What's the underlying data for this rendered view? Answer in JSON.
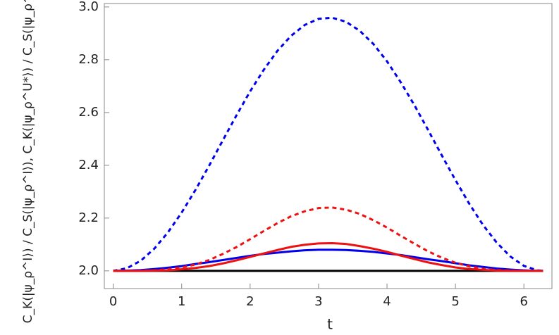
{
  "chart_data": {
    "type": "line",
    "x_label": "t",
    "y_label": "C_K(|ψ_ρ^I⟩) / C_S(|ψ_ρ^I⟩),  C_K(|ψ_ρ^U*⟩) / C_S(|ψ_ρ^U*⟩)",
    "x": [
      0,
      0.2,
      0.4,
      0.6,
      0.8,
      1.0,
      1.2,
      1.4,
      1.6,
      1.8,
      2.0,
      2.2,
      2.4,
      2.6,
      2.8,
      3.0,
      3.2,
      3.4,
      3.6,
      3.8,
      4.0,
      4.2,
      4.4,
      4.6,
      4.8,
      5.0,
      5.2,
      5.4,
      5.6,
      5.8,
      6.0,
      6.2,
      6.28
    ],
    "series": [
      {
        "color": "#000000",
        "dashed": false,
        "values": [
          2,
          2,
          2,
          2,
          2,
          2,
          2,
          2,
          2,
          2,
          2,
          2,
          2,
          2,
          2,
          2,
          2,
          2,
          2,
          2,
          2,
          2,
          2,
          2,
          2,
          2,
          2,
          2,
          2,
          2,
          2,
          2,
          2
        ]
      },
      {
        "color": "#0000ee",
        "dashed": true,
        "values": [
          2.0,
          2.01,
          2.038,
          2.084,
          2.146,
          2.221,
          2.306,
          2.398,
          2.494,
          2.589,
          2.68,
          2.762,
          2.834,
          2.891,
          2.932,
          2.955,
          2.959,
          2.944,
          2.91,
          2.86,
          2.794,
          2.715,
          2.628,
          2.534,
          2.438,
          2.344,
          2.255,
          2.175,
          2.108,
          2.055,
          2.019,
          2.002,
          2.0
        ]
      },
      {
        "color": "#0000ee",
        "dashed": false,
        "values": [
          2.0,
          2.001,
          2.003,
          2.007,
          2.012,
          2.018,
          2.026,
          2.033,
          2.041,
          2.049,
          2.057,
          2.064,
          2.069,
          2.074,
          2.078,
          2.08,
          2.08,
          2.079,
          2.076,
          2.072,
          2.066,
          2.06,
          2.052,
          2.044,
          2.037,
          2.029,
          2.021,
          2.015,
          2.009,
          2.005,
          2.002,
          2.0,
          2.0
        ]
      },
      {
        "color": "#ee1111",
        "dashed": true,
        "values": [
          2.0,
          2.0,
          2.0,
          2.002,
          2.006,
          2.013,
          2.024,
          2.041,
          2.064,
          2.09,
          2.12,
          2.151,
          2.181,
          2.207,
          2.226,
          2.238,
          2.24,
          2.232,
          2.216,
          2.192,
          2.164,
          2.133,
          2.103,
          2.074,
          2.05,
          2.031,
          2.017,
          2.008,
          2.003,
          2.001,
          2.0,
          2.0,
          2.0
        ]
      },
      {
        "color": "#ee1111",
        "dashed": false,
        "values": [
          2.0,
          2.0,
          2.0,
          2.001,
          2.002,
          2.006,
          2.011,
          2.018,
          2.028,
          2.04,
          2.053,
          2.066,
          2.079,
          2.091,
          2.099,
          2.104,
          2.105,
          2.102,
          2.094,
          2.084,
          2.072,
          2.058,
          2.045,
          2.032,
          2.022,
          2.013,
          2.007,
          2.004,
          2.001,
          2.0,
          2.0,
          2.0,
          2.0
        ]
      }
    ],
    "xlim": [
      -0.13,
      6.41
    ],
    "ylim": [
      1.933,
      3.013
    ],
    "xticks": [
      0,
      1,
      2,
      3,
      4,
      5,
      6
    ],
    "yticks": [
      {
        "value": 2,
        "label": "2.0"
      },
      {
        "value": 2.2,
        "label": "2.2"
      },
      {
        "value": 2.4,
        "label": "2.4"
      },
      {
        "value": 2.6,
        "label": "2.6"
      },
      {
        "value": 2.8,
        "label": "2.8"
      },
      {
        "value": 3,
        "label": "3.0"
      }
    ]
  }
}
